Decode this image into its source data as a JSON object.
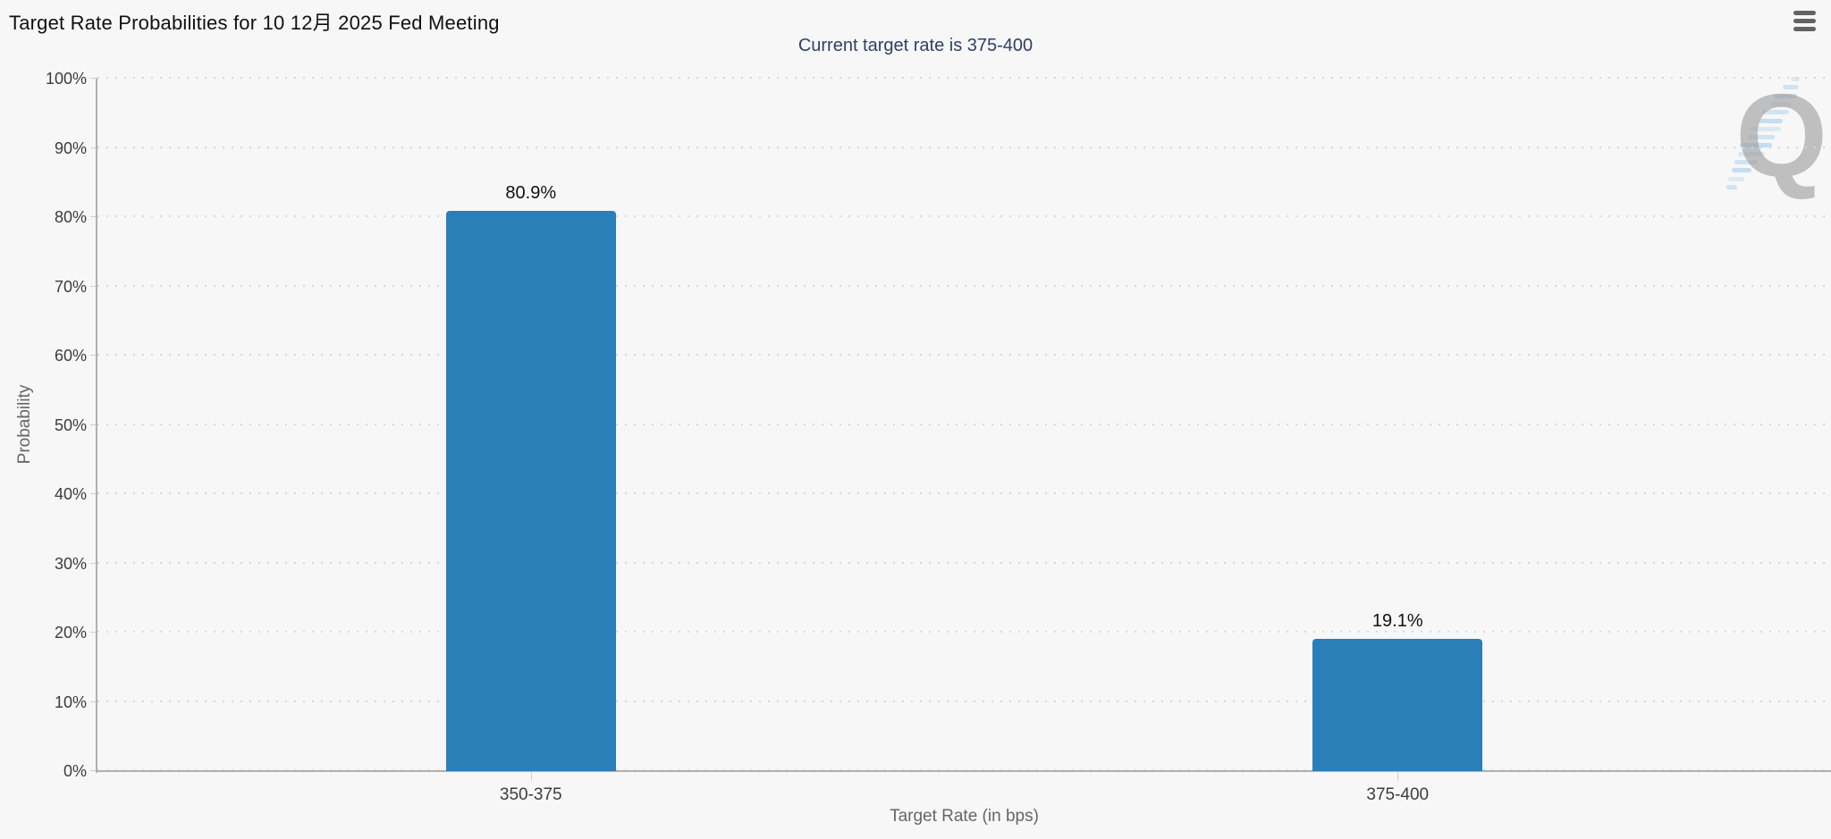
{
  "header": {
    "title": "Target Rate Probabilities for 10 12月 2025 Fed Meeting",
    "subtitle": "Current target rate is 375-400"
  },
  "toolbar": {
    "menu_icon": "hamburger"
  },
  "watermark": {
    "letter": "Q"
  },
  "chart_data": {
    "type": "bar",
    "title": "Target Rate Probabilities for 10 12月 2025 Fed Meeting",
    "subtitle": "Current target rate is 375-400",
    "categories": [
      "350-375",
      "375-400"
    ],
    "values": [
      80.9,
      19.1
    ],
    "value_labels": [
      "80.9%",
      "19.1%"
    ],
    "xlabel": "Target Rate (in bps)",
    "ylabel": "Probability",
    "ylim": [
      0,
      100
    ],
    "ytick_step": 10,
    "yticks": [
      "0%",
      "10%",
      "20%",
      "30%",
      "40%",
      "50%",
      "60%",
      "70%",
      "80%",
      "90%",
      "100%"
    ],
    "grid": "dotted-horizontal",
    "legend": "none",
    "bar_color": "#2a7fb8"
  },
  "colors": {
    "background": "#f7f7f7",
    "title": "#111111",
    "subtitle": "#333f63",
    "bar": "#2a7fb8",
    "axis_line": "#b0b0b0",
    "grid_dot": "#d6d6d6",
    "axis_label": "#3c3c3c",
    "axis_title": "#666666",
    "watermark_q": "#9d9d9d",
    "watermark_dash": "#9cc9ec"
  }
}
